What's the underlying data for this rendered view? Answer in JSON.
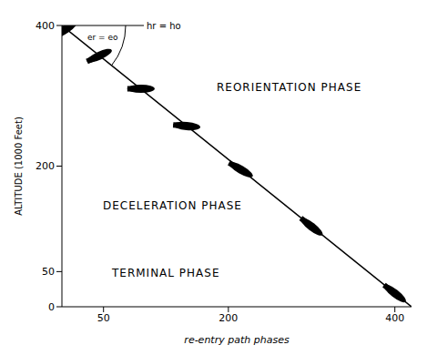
{
  "chart_data": {
    "type": "line",
    "x_label": "re-entry path phases",
    "y_label": "ALTITUDE (1000 Feet)",
    "xlim": [
      0,
      420
    ],
    "xticks": [
      50,
      200,
      400
    ],
    "ylim": [
      0,
      400
    ],
    "yticks": [
      0,
      50,
      200,
      400
    ],
    "annotations": [
      "REORIENTATION PHASE",
      "DECELERATION PHASE",
      "TERMINAL PHASE",
      "hr = ho",
      "er = eo"
    ],
    "grid": false,
    "series": [
      {
        "type": "line",
        "color": "#000000",
        "x": [
          0,
          420
        ],
        "values": [
          400,
          0
        ]
      },
      {
        "type": "scatter",
        "color": "#000000",
        "marker": "capsule",
        "x": [
          5,
          45,
          95,
          150,
          215,
          300,
          400
        ],
        "values": [
          395,
          357,
          310,
          257,
          195,
          114,
          19
        ]
      }
    ]
  }
}
